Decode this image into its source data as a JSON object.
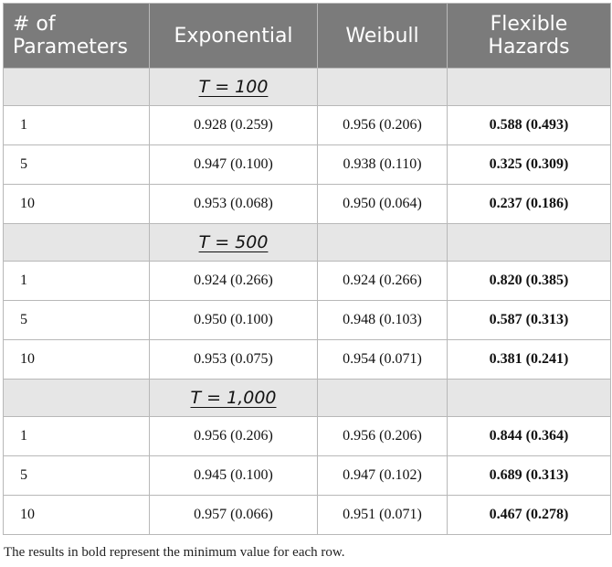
{
  "table": {
    "headers": [
      "# of Parameters",
      "Exponential",
      "Weibull",
      "Flexible Hazards"
    ],
    "sections": [
      {
        "label": "T = 100",
        "rows": [
          {
            "params": "1",
            "exponential": "0.928 (0.259)",
            "weibull": "0.956 (0.206)",
            "flexible": "0.588 (0.493)"
          },
          {
            "params": "5",
            "exponential": "0.947 (0.100)",
            "weibull": "0.938 (0.110)",
            "flexible": "0.325 (0.309)"
          },
          {
            "params": "10",
            "exponential": "0.953 (0.068)",
            "weibull": "0.950 (0.064)",
            "flexible": "0.237 (0.186)"
          }
        ]
      },
      {
        "label": "T = 500",
        "rows": [
          {
            "params": "1",
            "exponential": "0.924 (0.266)",
            "weibull": "0.924 (0.266)",
            "flexible": "0.820 (0.385)"
          },
          {
            "params": "5",
            "exponential": "0.950 (0.100)",
            "weibull": "0.948 (0.103)",
            "flexible": "0.587 (0.313)"
          },
          {
            "params": "10",
            "exponential": "0.953 (0.075)",
            "weibull": "0.954 (0.071)",
            "flexible": "0.381 (0.241)"
          }
        ]
      },
      {
        "label": "T = 1,000",
        "rows": [
          {
            "params": "1",
            "exponential": "0.956 (0.206)",
            "weibull": "0.956 (0.206)",
            "flexible": "0.844 (0.364)"
          },
          {
            "params": "5",
            "exponential": "0.945 (0.100)",
            "weibull": "0.947 (0.102)",
            "flexible": "0.689 (0.313)"
          },
          {
            "params": "10",
            "exponential": "0.957 (0.066)",
            "weibull": "0.951 (0.071)",
            "flexible": "0.467 (0.278)"
          }
        ]
      }
    ]
  },
  "footnote": "The results in bold represent the minimum value for each row.",
  "colors": {
    "header_bg": "#7b7b7b",
    "header_text": "#ffffff",
    "section_bg": "#e6e6e6",
    "border": "#b8b8b8"
  }
}
